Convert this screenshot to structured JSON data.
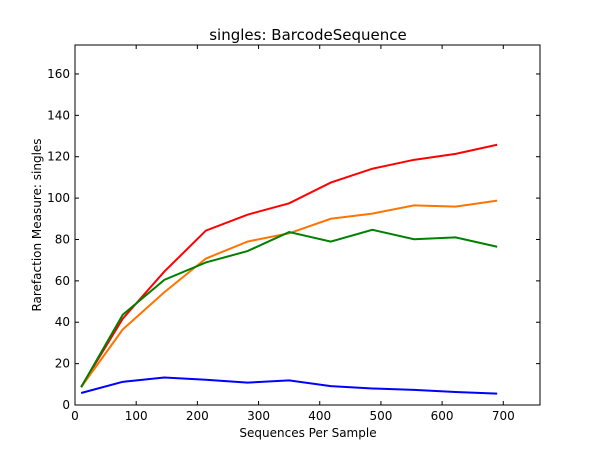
{
  "chart_data": {
    "type": "line",
    "title": "singles: BarcodeSequence",
    "xlabel": "Sequences Per Sample",
    "ylabel": "Rarefaction Measure: singles",
    "xlim": [
      0,
      760
    ],
    "ylim": [
      0,
      174
    ],
    "xticks": [
      0,
      100,
      200,
      300,
      400,
      500,
      600,
      700
    ],
    "yticks": [
      0,
      20,
      40,
      60,
      80,
      100,
      120,
      140,
      160
    ],
    "grid": false,
    "x": [
      10,
      78,
      146,
      214,
      282,
      350,
      418,
      486,
      554,
      622,
      690
    ],
    "series": [
      {
        "color": "#0000ff",
        "values": [
          5.8,
          11.2,
          13.3,
          12.2,
          10.8,
          11.9,
          9.1,
          8.0,
          7.3,
          6.3,
          5.5
        ]
      },
      {
        "color": "#ff0000",
        "values": [
          8.7,
          41.7,
          64.5,
          84.3,
          92.0,
          97.5,
          107.5,
          114.2,
          118.5,
          121.4,
          125.8
        ]
      },
      {
        "color": "#ff7400",
        "values": [
          8.6,
          36.5,
          54.5,
          70.8,
          79.0,
          83.0,
          90.0,
          92.5,
          96.5,
          95.9,
          98.8
        ]
      },
      {
        "color": "#008000",
        "values": [
          8.6,
          43.6,
          60.5,
          68.9,
          74.4,
          83.6,
          79.0,
          84.7,
          80.1,
          81.0,
          76.5
        ]
      }
    ]
  }
}
